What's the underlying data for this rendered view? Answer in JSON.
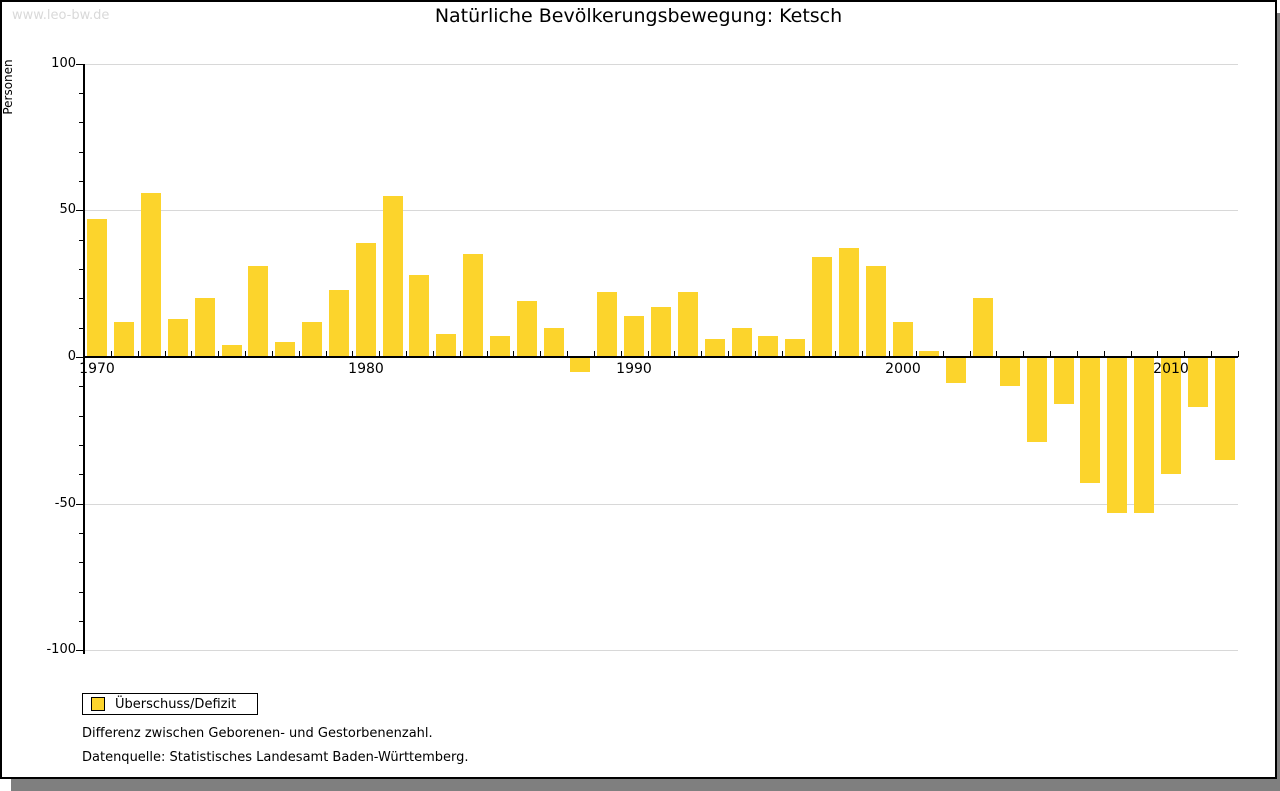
{
  "watermark": "www.leo-bw.de",
  "title": "Natürliche Bevölkerungsbewegung: Ketsch",
  "y_axis_label": "Personen",
  "legend": {
    "label": "Überschuss/Defizit"
  },
  "footnotes": [
    "Differenz zwischen Geborenen- und Gestorbenenzahl.",
    "Datenquelle: Statistisches Landesamt Baden-Württemberg."
  ],
  "colors": {
    "bar": "#fcd42c",
    "grid": "#d8d8d8",
    "axis": "#000000",
    "watermark": "#d9d9d9",
    "shadow": "#7f7f7f"
  },
  "chart_data": {
    "type": "bar",
    "title": "Natürliche Bevölkerungsbewegung: Ketsch",
    "xlabel": "",
    "ylabel": "Personen",
    "series_name": "Überschuss/Defizit",
    "ylim": [
      -100,
      100
    ],
    "yticks": [
      100,
      50,
      0,
      -50,
      -100
    ],
    "y_minor_tick_step": 10,
    "xticks": [
      1970,
      1980,
      1990,
      2000,
      2010
    ],
    "grid": "horizontal",
    "legend_position": "bottom-left",
    "x": [
      1970,
      1971,
      1972,
      1973,
      1974,
      1975,
      1976,
      1977,
      1978,
      1979,
      1980,
      1981,
      1982,
      1983,
      1984,
      1985,
      1986,
      1987,
      1988,
      1989,
      1990,
      1991,
      1992,
      1993,
      1994,
      1995,
      1996,
      1997,
      1998,
      1999,
      2000,
      2001,
      2002,
      2003,
      2004,
      2005,
      2006,
      2007,
      2008,
      2009,
      2010,
      2011,
      2012
    ],
    "values": [
      47,
      12,
      56,
      13,
      20,
      4,
      31,
      5,
      12,
      23,
      39,
      55,
      28,
      8,
      35,
      7,
      19,
      10,
      -5,
      22,
      14,
      17,
      22,
      6,
      10,
      7,
      6,
      34,
      37,
      31,
      12,
      2,
      -9,
      20,
      -10,
      -29,
      -16,
      -43,
      -53,
      -53,
      -40,
      -17,
      -35
    ]
  }
}
